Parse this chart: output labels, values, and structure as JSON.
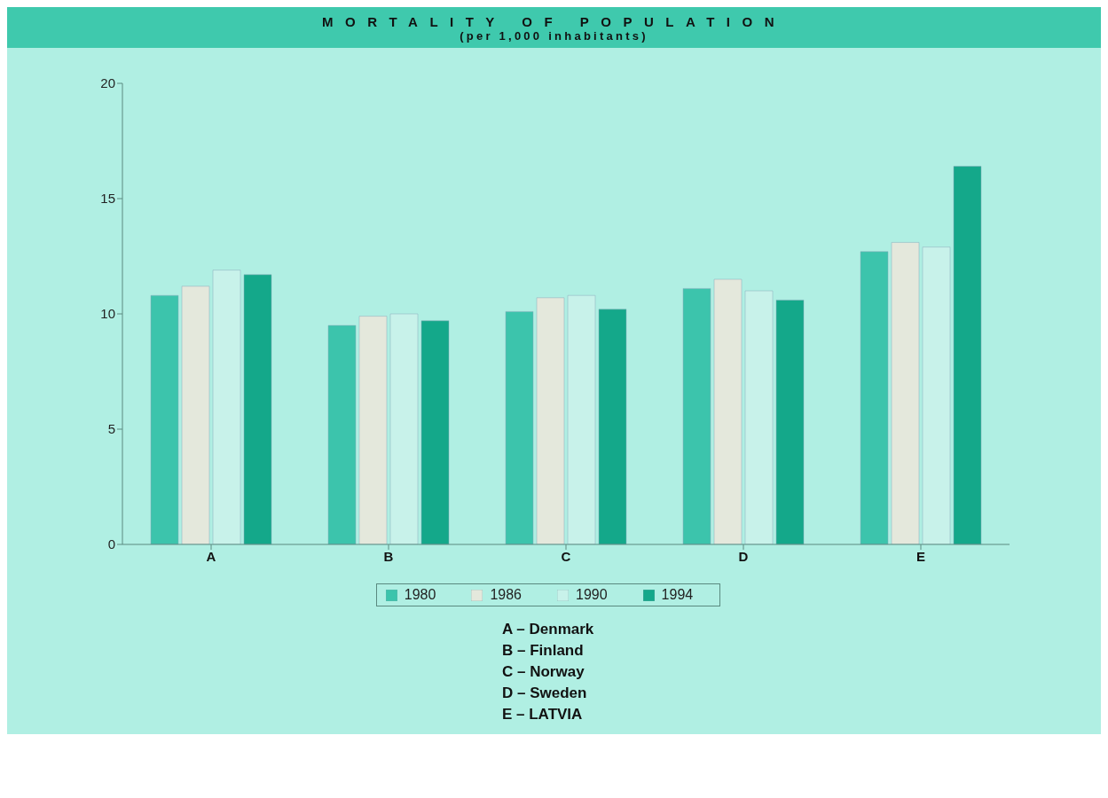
{
  "chart_data": {
    "type": "bar",
    "title": "MORTALITY OF POPULATION",
    "subtitle": "(per 1,000 inhabitants)",
    "categories": [
      "A",
      "B",
      "C",
      "D",
      "E"
    ],
    "series": [
      {
        "name": "1980",
        "color": "#3cc4ac",
        "values": [
          10.8,
          9.5,
          10.1,
          11.1,
          12.7
        ]
      },
      {
        "name": "1986",
        "color": "#e4e8dc",
        "values": [
          11.2,
          9.9,
          10.7,
          11.5,
          13.1
        ]
      },
      {
        "name": "1990",
        "color": "#c8f2ea",
        "values": [
          11.9,
          10.0,
          10.8,
          11.0,
          12.9
        ]
      },
      {
        "name": "1994",
        "color": "#14a88a",
        "values": [
          11.7,
          9.7,
          10.2,
          10.6,
          16.4
        ]
      }
    ],
    "ylim": [
      0,
      20
    ],
    "yticks": [
      0,
      5,
      10,
      15,
      20
    ],
    "grid": false,
    "legend": "bottom",
    "annotations": [
      "A – Denmark",
      "B – Finland",
      "C – Norway",
      "D – Sweden",
      "E – LATVIA"
    ]
  }
}
